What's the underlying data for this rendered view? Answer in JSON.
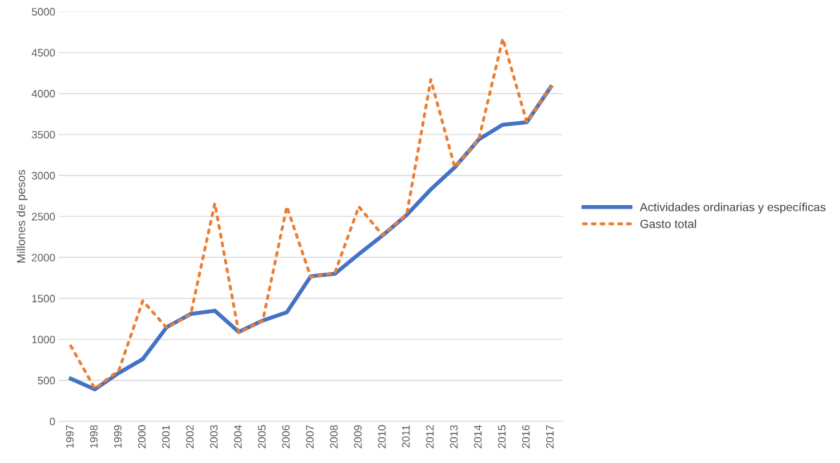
{
  "chart_data": {
    "type": "line",
    "ylabel": "Millones de pesos",
    "categories": [
      "1997",
      "1998",
      "1999",
      "2000",
      "2001",
      "2002",
      "2003",
      "2004",
      "2005",
      "2006",
      "2007",
      "2008",
      "2009",
      "2010",
      "2011",
      "2012",
      "2013",
      "2014",
      "2015",
      "2016",
      "2017"
    ],
    "series": [
      {
        "name": "Actividades ordinarias y específicas",
        "color": "#4472c4",
        "line_style": "solid",
        "values": [
          520,
          390,
          590,
          760,
          1150,
          1310,
          1350,
          1090,
          1230,
          1330,
          1770,
          1800,
          2040,
          2270,
          2520,
          2830,
          3100,
          3440,
          3620,
          3650,
          4080
        ]
      },
      {
        "name": "Gasto total",
        "color": "#ed7d31",
        "line_style": "dotted",
        "values": [
          920,
          400,
          620,
          1470,
          1140,
          1310,
          2660,
          1080,
          1230,
          2620,
          1760,
          1810,
          2620,
          2270,
          2530,
          4170,
          3100,
          3440,
          4670,
          3650,
          4080
        ]
      }
    ],
    "ylim": [
      0,
      5000
    ],
    "yticks": [
      0,
      500,
      1000,
      1500,
      2000,
      2500,
      3000,
      3500,
      4000,
      4500,
      5000
    ],
    "grid": "y",
    "legend": "right"
  }
}
